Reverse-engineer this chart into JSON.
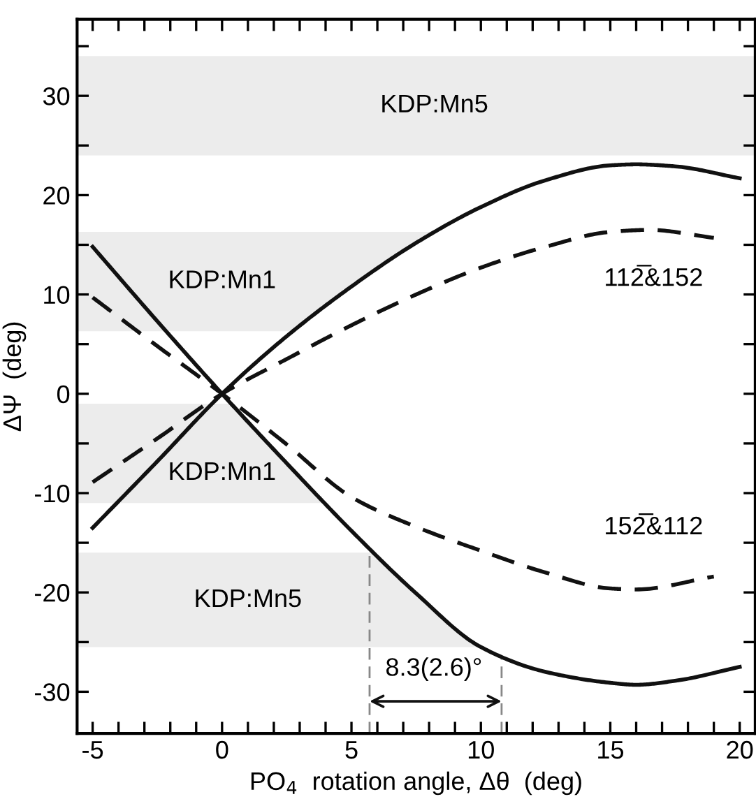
{
  "chart_data": {
    "type": "line",
    "xlabel": "PO$_{4}$  rotation angle, Δθ  (deg)",
    "ylabel": "ΔΨ  (deg)",
    "xlim": [
      -5.6,
      20.6
    ],
    "ylim": [
      -34.2,
      37.7
    ],
    "xticks": [
      -5,
      {
        "value": -4,
        "label": null
      },
      {
        "value": -3,
        "label": null
      },
      {
        "value": -2,
        "label": null
      },
      {
        "value": -1,
        "label": null
      },
      0,
      {
        "value": 1,
        "label": null
      },
      {
        "value": 2,
        "label": null
      },
      {
        "value": 3,
        "label": null
      },
      {
        "value": 4,
        "label": null
      },
      5,
      {
        "value": 6,
        "label": null
      },
      {
        "value": 7,
        "label": null
      },
      {
        "value": 8,
        "label": null
      },
      {
        "value": 9,
        "label": null
      },
      10,
      {
        "value": 11,
        "label": null
      },
      {
        "value": 12,
        "label": null
      },
      {
        "value": 13,
        "label": null
      },
      {
        "value": 14,
        "label": null
      },
      15,
      {
        "value": 16,
        "label": null
      },
      {
        "value": 17,
        "label": null
      },
      {
        "value": 18,
        "label": null
      },
      {
        "value": 19,
        "label": null
      },
      20
    ],
    "yticks": [
      -30,
      {
        "value": -25,
        "label": null
      },
      -20,
      {
        "value": -15,
        "label": null
      },
      -10,
      {
        "value": -5,
        "label": null
      },
      0,
      {
        "value": 5,
        "label": null
      },
      10,
      {
        "value": 15,
        "label": null
      },
      20,
      {
        "value": 25,
        "label": null
      },
      30,
      {
        "value": 35,
        "label": null
      }
    ],
    "grid": false,
    "series": [
      {
        "color": "#111111",
        "line_style": "solid",
        "x": [
          -5,
          -2.5,
          0,
          2.5,
          5,
          7.5,
          10,
          12.5,
          15,
          16,
          17.5,
          20
        ],
        "values": [
          -13.5,
          -6.8,
          0,
          5.8,
          10.8,
          15.2,
          18.8,
          21.5,
          23.0,
          23.1,
          22.9,
          21.7
        ]
      },
      {
        "color": "#111111",
        "line_style": "solid",
        "x": [
          -5,
          -2.5,
          0,
          2.5,
          5,
          7.5,
          10,
          12.5,
          15,
          16,
          17.5,
          20
        ],
        "values": [
          14.8,
          7.3,
          0,
          -7.0,
          -13.8,
          -20.1,
          -25.5,
          -28.0,
          -29.1,
          -29.3,
          -28.9,
          -27.5
        ]
      },
      {
        "color": "#111111",
        "line_style": "dashed",
        "x": [
          -5,
          -2.5,
          0,
          2.5,
          5,
          7.5,
          10,
          12.5,
          15,
          16.5,
          19
        ],
        "values": [
          -8.9,
          -4.5,
          0,
          3.5,
          6.9,
          10.0,
          12.7,
          14.8,
          16.3,
          16.5,
          15.7
        ]
      },
      {
        "color": "#111111",
        "line_style": "dashed",
        "x": [
          -5,
          -2.5,
          0,
          2.5,
          5,
          7.5,
          10,
          12.5,
          15,
          16,
          19
        ],
        "values": [
          9.7,
          4.8,
          0,
          -5.1,
          -10.4,
          -13.4,
          -15.8,
          -18.0,
          -19.6,
          -19.7,
          -18.4
        ]
      }
    ],
    "bands": [
      {
        "axis": "y",
        "from": 24,
        "to": 34,
        "label": "KDP:Mn5",
        "color": "#ececec"
      },
      {
        "axis": "y",
        "from": 6.3,
        "to": 16.3,
        "label": "KDP:Mn1",
        "color": "#ececec"
      },
      {
        "axis": "y",
        "from": -11,
        "to": -1,
        "label": "KDP:Mn1",
        "color": "#ececec"
      },
      {
        "axis": "y",
        "from": -25.5,
        "to": -16,
        "label": "KDP:Mn5",
        "color": "#ececec"
      }
    ],
    "ref_lines": [
      {
        "axis": "x",
        "value": 5.7,
        "label": null,
        "color": "#888888",
        "line_style": "dashed"
      },
      {
        "axis": "x",
        "value": 10.8,
        "label": null,
        "color": "#888888",
        "line_style": "dashed"
      }
    ],
    "annotations": [
      "112̅&152",
      "152̅&112",
      "8.3(2.6)°"
    ]
  }
}
